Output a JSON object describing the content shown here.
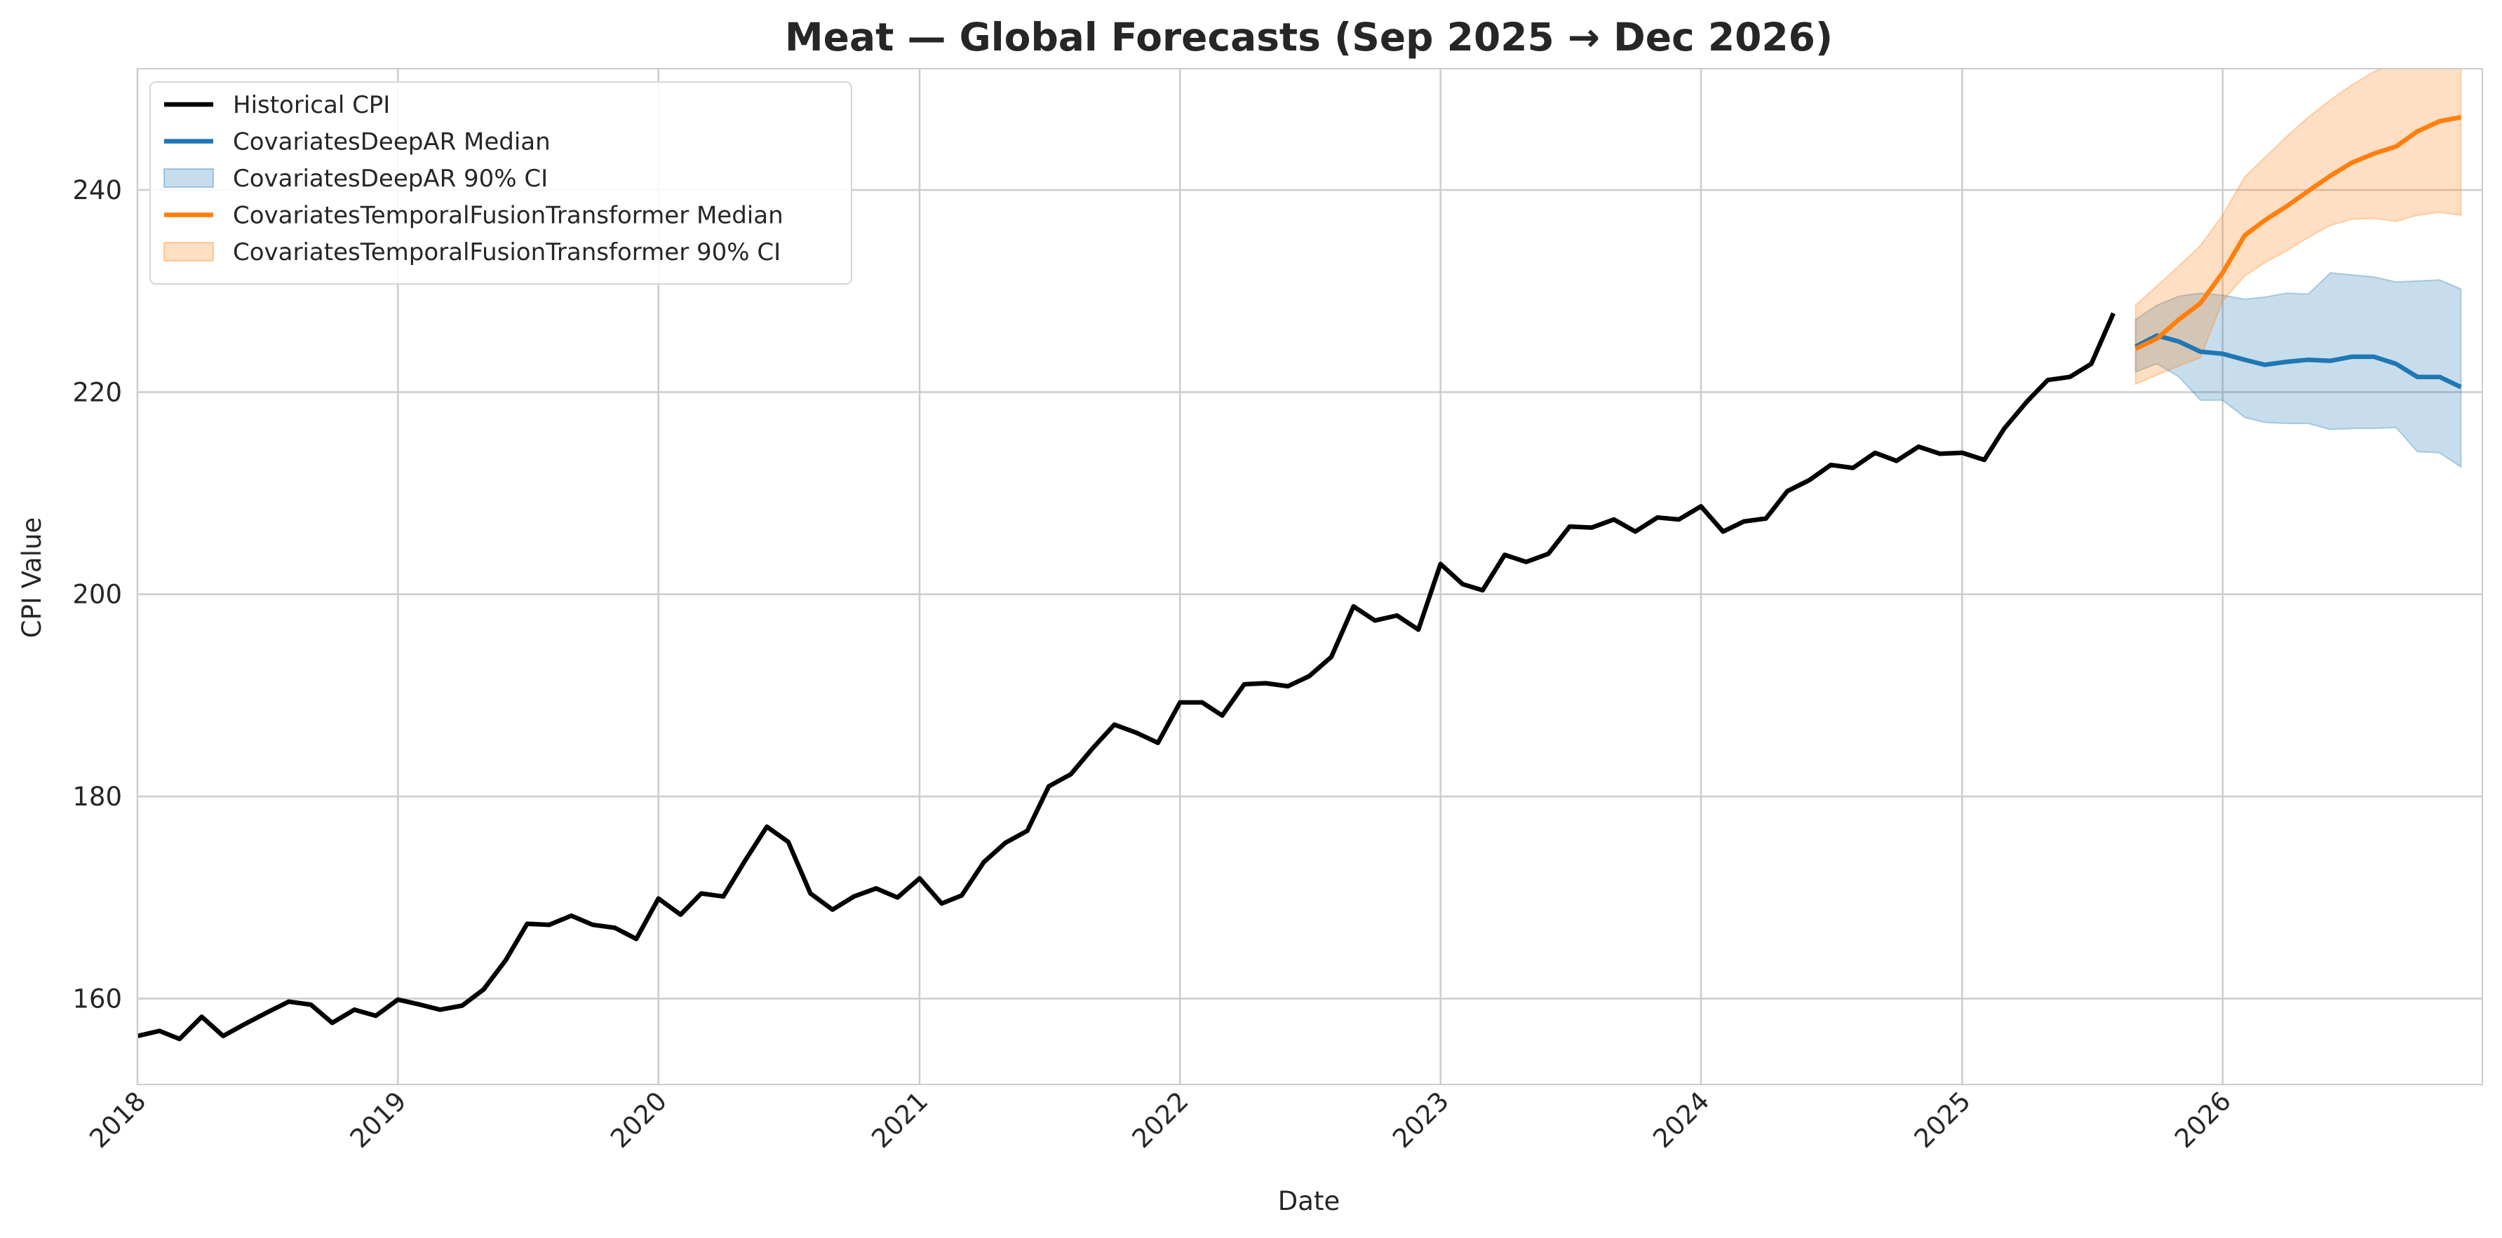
{
  "chart_data": {
    "type": "line",
    "title": "Meat — Global Forecasts (Sep 2025 → Dec 2026)",
    "xlabel": "Date",
    "ylabel": "CPI Value",
    "xlim": [
      "2018-01-01",
      "2026-12-31"
    ],
    "ylim": [
      151.5,
      252
    ],
    "y_ticks": [
      160,
      180,
      200,
      220,
      240
    ],
    "x_ticks": [
      {
        "date": "2018-01-01",
        "label": "2018"
      },
      {
        "date": "2019-01-01",
        "label": "2019"
      },
      {
        "date": "2020-01-01",
        "label": "2020"
      },
      {
        "date": "2021-01-01",
        "label": "2021"
      },
      {
        "date": "2022-01-01",
        "label": "2022"
      },
      {
        "date": "2023-01-01",
        "label": "2023"
      },
      {
        "date": "2024-01-01",
        "label": "2024"
      },
      {
        "date": "2025-01-01",
        "label": "2025"
      },
      {
        "date": "2026-01-01",
        "label": "2026"
      }
    ],
    "grid": true,
    "legend_position": "top-left",
    "colors": {
      "historical": "#000000",
      "deepar": "#1f77b4",
      "tft": "#ff7f0e",
      "grid": "#cccccc"
    },
    "historical": {
      "name": "Historical CPI",
      "start": "2018-01",
      "values": [
        156.3,
        156.8,
        156.0,
        158.2,
        156.3,
        157.5,
        158.6,
        159.7,
        159.4,
        157.6,
        158.9,
        158.3,
        159.9,
        159.4,
        158.9,
        159.3,
        160.9,
        163.8,
        167.4,
        167.3,
        168.2,
        167.3,
        167.0,
        165.9,
        169.9,
        168.3,
        170.4,
        170.1,
        173.6,
        177.0,
        175.5,
        170.4,
        168.8,
        170.1,
        170.9,
        170.0,
        171.9,
        169.4,
        170.2,
        173.5,
        175.4,
        176.6,
        181.0,
        182.2,
        184.8,
        187.1,
        186.3,
        185.3,
        189.3,
        189.3,
        188.0,
        191.1,
        191.2,
        190.9,
        191.9,
        193.8,
        198.8,
        197.4,
        197.9,
        196.5,
        203.0,
        201.0,
        200.4,
        203.9,
        203.2,
        204.0,
        206.7,
        206.6,
        207.4,
        206.2,
        207.6,
        207.4,
        208.7,
        206.2,
        207.2,
        207.5,
        210.2,
        211.3,
        212.8,
        212.5,
        214.0,
        213.2,
        214.6,
        213.9,
        214.0,
        213.3,
        216.4,
        219.0,
        221.2,
        221.5,
        222.8,
        227.8
      ]
    },
    "series": [
      {
        "name": "CovariatesDeepAR Median",
        "ci_name": "CovariatesDeepAR 90% CI",
        "start": "2025-09",
        "median": [
          224.5,
          225.6,
          225.0,
          224.0,
          223.8,
          223.2,
          222.7,
          223.0,
          223.2,
          223.1,
          223.5,
          223.5,
          222.8,
          221.5,
          221.5,
          220.5
        ],
        "lower": [
          222.0,
          222.8,
          221.5,
          219.2,
          219.2,
          217.5,
          217.0,
          216.9,
          216.9,
          216.3,
          216.4,
          216.4,
          216.5,
          214.1,
          214.0,
          212.6
        ],
        "upper": [
          227.2,
          228.6,
          229.5,
          229.8,
          229.6,
          229.2,
          229.4,
          229.8,
          229.7,
          231.8,
          231.6,
          231.4,
          230.9,
          231.0,
          231.1,
          230.2
        ]
      },
      {
        "name": "CovariatesTemporalFusionTransformer Median",
        "ci_name": "CovariatesTemporalFusionTransformer 90% CI",
        "start": "2025-09",
        "median": [
          224.3,
          225.3,
          227.2,
          228.8,
          231.8,
          235.5,
          237.0,
          238.4,
          239.9,
          241.4,
          242.7,
          243.6,
          244.3,
          245.8,
          246.8,
          247.2
        ],
        "lower": [
          220.8,
          221.7,
          222.6,
          223.4,
          229.0,
          231.5,
          232.8,
          234.0,
          235.3,
          236.5,
          237.1,
          237.2,
          236.9,
          237.5,
          237.8,
          237.5
        ],
        "upper": [
          228.6,
          230.5,
          232.5,
          234.5,
          237.5,
          241.3,
          243.2,
          245.3,
          247.2,
          248.9,
          250.4,
          251.7,
          252.5,
          253.6,
          254.4,
          254.9
        ]
      }
    ],
    "legend": [
      {
        "label": "Historical CPI",
        "kind": "line",
        "color": "#000000"
      },
      {
        "label": "CovariatesDeepAR Median",
        "kind": "line",
        "color": "#1f77b4"
      },
      {
        "label": "CovariatesDeepAR 90% CI",
        "kind": "patch",
        "color": "#1f77b4"
      },
      {
        "label": "CovariatesTemporalFusionTransformer Median",
        "kind": "line",
        "color": "#ff7f0e"
      },
      {
        "label": "CovariatesTemporalFusionTransformer 90% CI",
        "kind": "patch",
        "color": "#ff7f0e"
      }
    ]
  }
}
